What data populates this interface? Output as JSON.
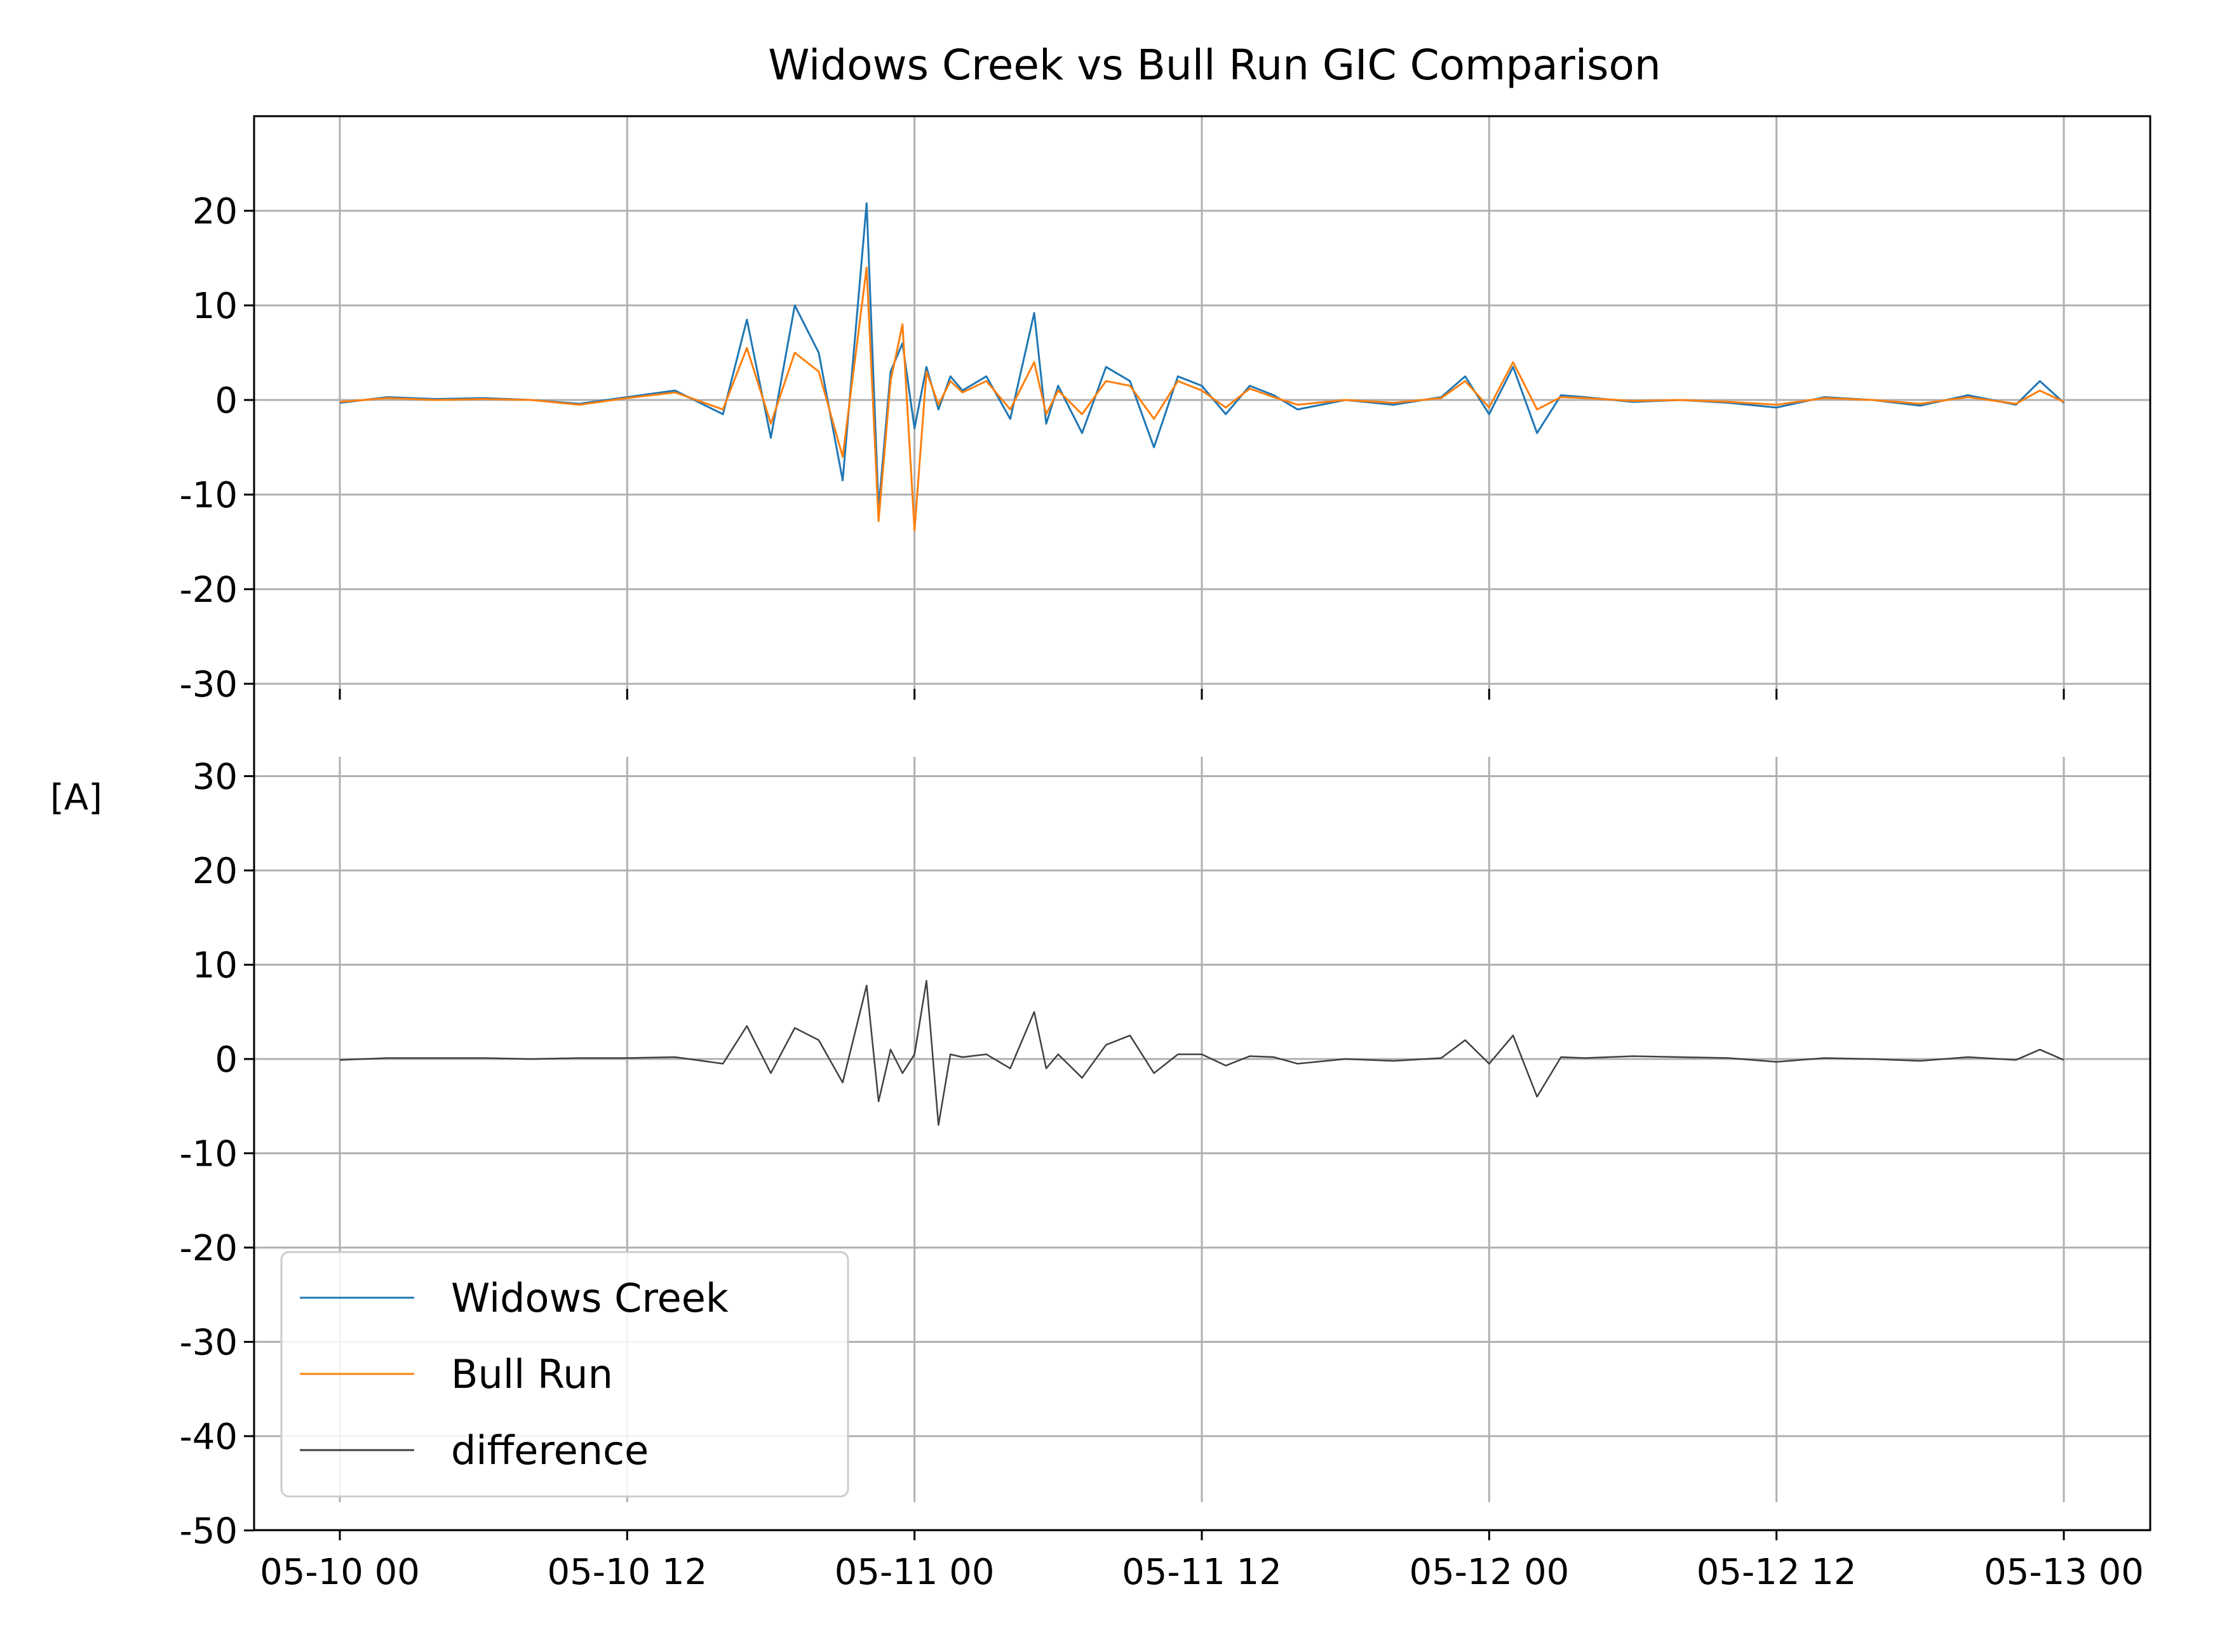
{
  "chart_data": {
    "type": "line",
    "title": "Widows Creek vs Bull Run GIC Comparison",
    "ylabel": "[A]",
    "xlabel": "",
    "grid": true,
    "x_range": [
      "05-10 00",
      "05-13 00"
    ],
    "x_ticks": [
      "05-10 00",
      "05-10 12",
      "05-11 00",
      "05-11 12",
      "05-12 00",
      "05-12 12",
      "05-13 00"
    ],
    "colors": {
      "widows": "#1f77b4",
      "bull": "#ff7f0e",
      "difference": "#404040",
      "grid": "#b0b0b0"
    },
    "legend": {
      "placement": "lower-left",
      "entries": [
        "Widows Creek",
        "Bull Run",
        "difference"
      ]
    },
    "panels": [
      {
        "name": "top",
        "ylim": [
          -30,
          30
        ],
        "yticks": [
          "-30",
          "-20",
          "-10",
          "0",
          "10",
          "20"
        ],
        "series": [
          {
            "name": "Widows Creek",
            "x_hours": [
              0,
              2,
              4,
              6,
              8,
              10,
              12,
              14,
              16,
              17,
              18,
              19,
              20,
              21,
              22,
              22.5,
              23,
              23.5,
              24,
              24.5,
              25,
              25.5,
              26,
              27,
              28,
              29,
              29.5,
              30,
              31,
              32,
              33,
              34,
              35,
              36,
              37,
              38,
              39,
              40,
              42,
              44,
              46,
              47,
              48,
              49,
              50,
              51,
              52,
              54,
              56,
              58,
              60,
              62,
              64,
              66,
              68,
              70,
              71,
              72
            ],
            "values": [
              -0.3,
              0.3,
              0.1,
              0.2,
              0.0,
              -0.4,
              0.3,
              1.0,
              -1.5,
              8.5,
              -4.0,
              10.0,
              5.0,
              -8.5,
              20.8,
              -11.5,
              3.0,
              6.0,
              -3.0,
              3.5,
              -1.0,
              2.5,
              1.0,
              2.5,
              -2.0,
              9.2,
              -2.5,
              1.5,
              -3.5,
              3.5,
              2.0,
              -5.0,
              2.5,
              1.5,
              -1.5,
              1.5,
              0.5,
              -1.0,
              0.0,
              -0.5,
              0.3,
              2.5,
              -1.5,
              3.5,
              -3.5,
              0.5,
              0.3,
              -0.2,
              0.0,
              -0.3,
              -0.8,
              0.3,
              0.0,
              -0.6,
              0.5,
              -0.5,
              2.0,
              -0.3
            ]
          },
          {
            "name": "Bull Run",
            "x_hours": [
              0,
              2,
              4,
              6,
              8,
              10,
              12,
              14,
              16,
              17,
              18,
              19,
              20,
              21,
              22,
              22.5,
              23,
              23.5,
              24,
              24.5,
              25,
              25.5,
              26,
              27,
              28,
              29,
              29.5,
              30,
              31,
              32,
              33,
              34,
              35,
              36,
              37,
              38,
              39,
              40,
              42,
              44,
              46,
              47,
              48,
              49,
              50,
              51,
              52,
              54,
              56,
              58,
              60,
              62,
              64,
              66,
              68,
              70,
              71,
              72
            ],
            "values": [
              -0.2,
              0.2,
              0.0,
              0.1,
              0.0,
              -0.5,
              0.2,
              0.8,
              -1.0,
              5.5,
              -2.5,
              5.0,
              3.0,
              -6.0,
              14.0,
              -12.8,
              2.0,
              8.0,
              -13.8,
              3.0,
              -0.5,
              2.0,
              0.8,
              2.0,
              -1.0,
              4.0,
              -1.5,
              1.0,
              -1.5,
              2.0,
              1.5,
              -2.0,
              2.0,
              1.0,
              -0.8,
              1.2,
              0.3,
              -0.5,
              0.0,
              -0.3,
              0.2,
              2.0,
              -0.8,
              4.0,
              -1.0,
              0.3,
              0.2,
              -0.1,
              0.0,
              -0.2,
              -0.5,
              0.2,
              0.0,
              -0.4,
              0.3,
              -0.4,
              1.0,
              -0.2
            ]
          }
        ]
      },
      {
        "name": "bottom",
        "ylim": [
          -50,
          30
        ],
        "yticks": [
          "-50",
          "-40",
          "-30",
          "-20",
          "-10",
          "0",
          "10",
          "20",
          "30"
        ],
        "series": [
          {
            "name": "difference",
            "x_hours": [
              0,
              2,
              4,
              6,
              8,
              10,
              12,
              14,
              16,
              17,
              18,
              19,
              20,
              21,
              22,
              22.5,
              23,
              23.5,
              24,
              24.5,
              25,
              25.5,
              26,
              27,
              28,
              29,
              29.5,
              30,
              31,
              32,
              33,
              34,
              35,
              36,
              37,
              38,
              39,
              40,
              42,
              44,
              46,
              47,
              48,
              49,
              50,
              51,
              52,
              54,
              56,
              58,
              60,
              62,
              64,
              66,
              68,
              70,
              71,
              72
            ],
            "values": [
              -0.1,
              0.1,
              0.1,
              0.1,
              0.0,
              0.1,
              0.1,
              0.2,
              -0.5,
              3.5,
              -1.5,
              3.3,
              2.0,
              -2.5,
              7.8,
              -4.5,
              1.0,
              -1.5,
              0.5,
              8.3,
              -7.0,
              0.5,
              0.2,
              0.5,
              -1.0,
              5.0,
              -1.0,
              0.5,
              -2.0,
              1.5,
              2.5,
              -1.5,
              0.5,
              0.5,
              -0.7,
              0.3,
              0.2,
              -0.5,
              0.0,
              -0.2,
              0.1,
              2.0,
              -0.5,
              2.5,
              -4.0,
              0.2,
              0.1,
              0.3,
              0.2,
              0.1,
              -0.3,
              0.1,
              0.0,
              -0.2,
              0.2,
              -0.1,
              1.0,
              -0.1
            ]
          }
        ]
      }
    ]
  }
}
